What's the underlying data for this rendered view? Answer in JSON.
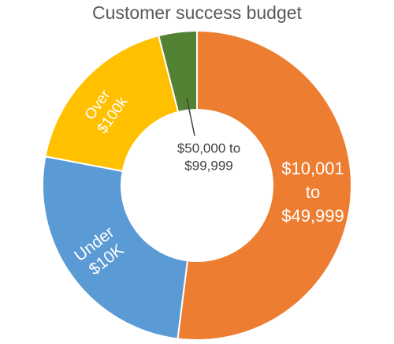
{
  "chart_data": {
    "type": "donut",
    "title": "Customer success budget",
    "categories": [
      [
        "$10,001",
        "to",
        "$49,999"
      ],
      [
        "Under",
        "$10K"
      ],
      [
        "Over",
        "$100k"
      ],
      [
        "$50,000 to",
        "$99,999"
      ]
    ],
    "values": [
      52,
      26,
      18,
      4
    ],
    "colors": [
      "#ED7D31",
      "#5B9BD5",
      "#FFC000",
      "#548235"
    ]
  }
}
